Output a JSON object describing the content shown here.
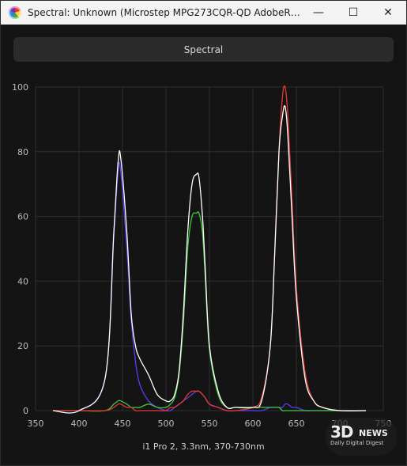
{
  "window": {
    "title": "Spectral: Unknown (Microstep MPG273CQR-QD AdobeRGB (i1...",
    "minimize_glyph": "—",
    "maximize_glyph": "☐",
    "close_glyph": "✕"
  },
  "toolbar": {
    "mode_button_label": "Spectral"
  },
  "footer": {
    "label": "i1 Pro 2, 3.3nm, 370-730nm"
  },
  "watermark": {
    "big": "3D",
    "news": "NEWS",
    "sub": "Daily Digital Digest"
  },
  "chart_data": {
    "type": "line",
    "xlim": [
      350,
      750
    ],
    "ylim": [
      0,
      100
    ],
    "x_ticks": [
      350,
      400,
      450,
      500,
      550,
      600,
      650,
      700,
      750
    ],
    "y_ticks": [
      0,
      20,
      40,
      60,
      80,
      100
    ],
    "grid": true,
    "x": [
      370,
      400,
      430,
      440,
      445,
      448,
      455,
      460,
      465,
      470,
      480,
      490,
      500,
      505,
      510,
      515,
      520,
      525,
      530,
      535,
      538,
      542,
      545,
      550,
      560,
      570,
      580,
      600,
      610,
      620,
      625,
      630,
      634,
      637,
      640,
      645,
      650,
      660,
      670,
      680,
      700,
      730
    ],
    "series": [
      {
        "color": "#ffffff",
        "values": [
          0,
          0,
          10,
          55,
          77,
          78,
          55,
          30,
          20,
          16,
          11,
          5,
          3,
          3,
          5,
          12,
          30,
          55,
          70,
          73,
          72,
          60,
          45,
          20,
          6,
          1,
          1,
          1,
          3,
          20,
          48,
          80,
          91,
          94,
          86,
          60,
          35,
          10,
          3,
          1,
          0,
          0
        ]
      },
      {
        "color": "#e53935",
        "values": [
          0,
          0,
          0,
          1,
          2,
          2,
          1,
          1,
          0,
          0,
          0,
          0,
          0,
          1,
          1,
          2,
          3,
          5,
          6,
          6,
          6,
          5,
          4,
          2,
          1,
          0,
          0,
          1,
          4,
          20,
          48,
          80,
          97,
          100,
          92,
          65,
          38,
          12,
          3,
          1,
          0,
          0
        ]
      },
      {
        "color": "#43c443",
        "values": [
          0,
          0,
          0,
          2,
          3,
          3,
          2,
          1,
          1,
          1,
          2,
          1,
          1,
          2,
          4,
          11,
          27,
          50,
          60,
          61,
          61,
          55,
          42,
          19,
          5,
          1,
          1,
          1,
          1,
          1,
          1,
          1,
          0,
          0,
          0,
          0,
          0,
          0,
          0,
          0,
          0,
          0
        ]
      },
      {
        "color": "#5b3df0",
        "values": [
          0,
          0,
          10,
          54,
          74,
          74,
          50,
          28,
          15,
          8,
          3,
          1,
          0,
          0,
          1,
          2,
          3,
          4,
          5,
          6,
          6,
          5,
          4,
          2,
          1,
          0,
          0,
          0,
          0,
          1,
          1,
          1,
          1,
          2,
          2,
          1,
          1,
          0,
          0,
          0,
          0,
          0
        ]
      }
    ]
  }
}
